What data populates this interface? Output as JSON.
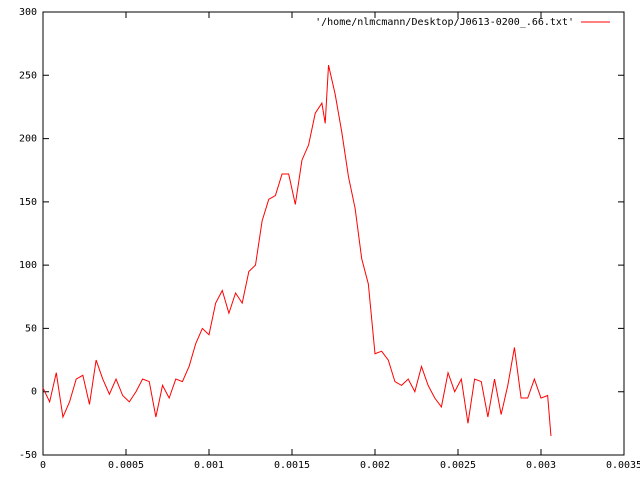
{
  "chart_data": {
    "type": "line",
    "x": [
      0,
      4e-05,
      8e-05,
      0.00012,
      0.00016,
      0.0002,
      0.00024,
      0.00028,
      0.00032,
      0.00036,
      0.0004,
      0.00044,
      0.00048,
      0.00052,
      0.00056,
      0.0006,
      0.00064,
      0.00068,
      0.00072,
      0.00076,
      0.0008,
      0.00084,
      0.00088,
      0.00092,
      0.00096,
      0.001,
      0.00104,
      0.00108,
      0.00112,
      0.00116,
      0.0012,
      0.00124,
      0.00128,
      0.00132,
      0.00136,
      0.0014,
      0.00144,
      0.00148,
      0.00152,
      0.00156,
      0.0016,
      0.00164,
      0.00168,
      0.0017,
      0.00172,
      0.00176,
      0.0018,
      0.00184,
      0.00188,
      0.00192,
      0.00196,
      0.002,
      0.00204,
      0.00208,
      0.00212,
      0.00216,
      0.0022,
      0.00224,
      0.00228,
      0.00232,
      0.00236,
      0.0024,
      0.00244,
      0.00248,
      0.00252,
      0.00256,
      0.0026,
      0.00264,
      0.00268,
      0.00272,
      0.00276,
      0.0028,
      0.00284,
      0.00288,
      0.00292,
      0.00296,
      0.003,
      0.00304,
      0.00306
    ],
    "series": [
      {
        "name": "'/home/nlmcmann/Desktop/J0613-0200_.66.txt'",
        "color": "#ff0000",
        "values": [
          3,
          -8,
          15,
          -20,
          -8,
          10,
          13,
          -10,
          25,
          10,
          -2,
          10,
          -3,
          -8,
          0,
          10,
          8,
          -20,
          5,
          -5,
          10,
          8,
          20,
          38,
          50,
          45,
          70,
          80,
          62,
          78,
          70,
          95,
          100,
          135,
          152,
          155,
          172,
          172,
          148,
          183,
          195,
          220,
          228,
          212,
          258,
          235,
          205,
          170,
          145,
          105,
          85,
          30,
          32,
          25,
          8,
          5,
          10,
          0,
          20,
          5,
          -5,
          -12,
          15,
          0,
          10,
          -25,
          10,
          8,
          -20,
          10,
          -18,
          5,
          35,
          -5,
          -5,
          10,
          -5,
          -3,
          -35
        ]
      }
    ],
    "xlim": [
      0,
      0.0035
    ],
    "ylim": [
      -50,
      300
    ],
    "xticks": [
      0,
      0.0005,
      0.001,
      0.0015,
      0.002,
      0.0025,
      0.003,
      0.0035
    ],
    "yticks": [
      -50,
      0,
      50,
      100,
      150,
      200,
      250,
      300
    ],
    "legend": "top-right"
  }
}
